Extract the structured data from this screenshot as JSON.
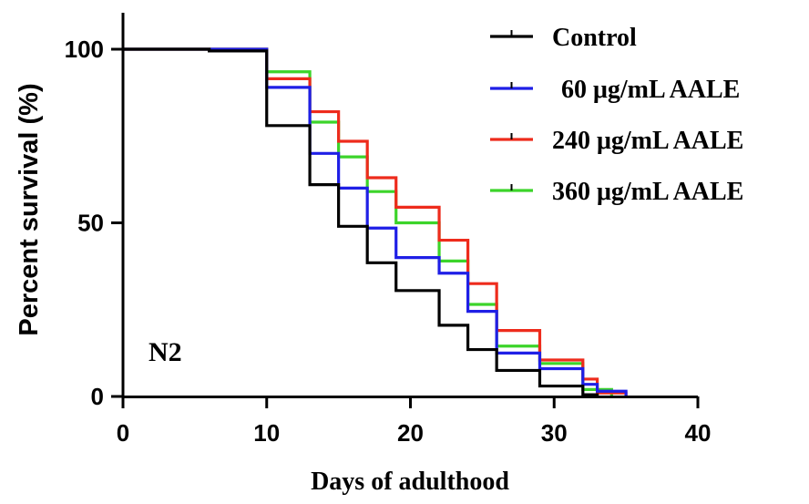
{
  "chart_data": {
    "type": "line",
    "subtype": "step",
    "title": "",
    "xlabel": "Days of adulthood",
    "ylabel": "Percent survival (%)",
    "xlim": [
      0,
      40
    ],
    "ylim": [
      0,
      100
    ],
    "x_ticks": [
      0,
      10,
      20,
      30,
      40
    ],
    "y_ticks": [
      0,
      50,
      100
    ],
    "annotation": "N2",
    "legend_position": "top-right",
    "series": [
      {
        "name": "Control",
        "color": "#000000",
        "x": [
          0,
          6,
          10,
          13,
          15,
          17,
          19,
          22,
          24,
          26,
          29,
          32,
          33
        ],
        "y": [
          100,
          99.5,
          78,
          61,
          49,
          38.5,
          30.5,
          20.5,
          13.5,
          7.5,
          3,
          0.5,
          0
        ]
      },
      {
        "name": "60 μg/mL AALE",
        "color": "#1f1fe6",
        "x": [
          0,
          10,
          13,
          15,
          17,
          19,
          22,
          24,
          26,
          29,
          32,
          33,
          35
        ],
        "y": [
          100,
          89,
          70,
          60,
          48.5,
          40,
          35.5,
          24.5,
          12.5,
          8,
          3.5,
          1.5,
          0
        ]
      },
      {
        "name": "240 μg/mL AALE",
        "color": "#ee2b1c",
        "x": [
          0,
          10,
          13,
          15,
          17,
          19,
          22,
          24,
          26,
          29,
          32,
          33,
          35
        ],
        "y": [
          100,
          91.5,
          82,
          73.5,
          63,
          54.5,
          45,
          32.5,
          19,
          10.5,
          5,
          1,
          0
        ]
      },
      {
        "name": "360 μg/mL AALE",
        "color": "#3cd42a",
        "x": [
          0,
          10,
          13,
          15,
          17,
          19,
          22,
          24,
          26,
          29,
          32,
          34
        ],
        "y": [
          100,
          93.5,
          79,
          69,
          59,
          50,
          39,
          26.5,
          14.5,
          9.5,
          2,
          0
        ]
      }
    ]
  }
}
